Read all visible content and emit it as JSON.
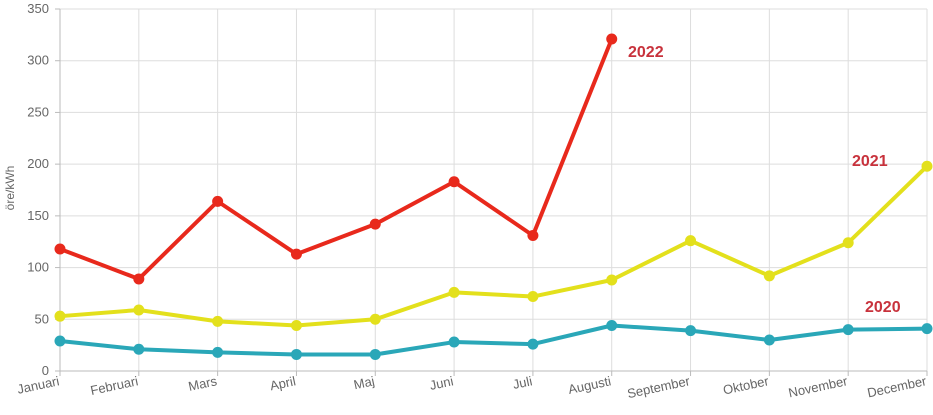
{
  "chart_data": {
    "type": "line",
    "title": "",
    "xlabel": "",
    "ylabel": "öre/kWh",
    "ylim": [
      0,
      350
    ],
    "yticks": [
      0,
      50,
      100,
      150,
      200,
      250,
      300,
      350
    ],
    "grid": true,
    "legend": "none",
    "categories": [
      "Januari",
      "Februari",
      "Mars",
      "April",
      "Maj",
      "Juni",
      "Juli",
      "Augusti",
      "September",
      "Oktober",
      "November",
      "December"
    ],
    "series": [
      {
        "name": "2020",
        "color": "#2aa7b8",
        "values": [
          29,
          21,
          18,
          16,
          16,
          28,
          26,
          44,
          39,
          30,
          40,
          41
        ]
      },
      {
        "name": "2021",
        "color": "#e3e01c",
        "values": [
          53,
          59,
          48,
          44,
          50,
          76,
          72,
          88,
          126,
          92,
          124,
          198
        ]
      },
      {
        "name": "2022",
        "color": "#e8291c",
        "values": [
          118,
          89,
          164,
          113,
          142,
          183,
          131,
          321,
          null,
          null,
          null,
          null
        ]
      }
    ]
  }
}
